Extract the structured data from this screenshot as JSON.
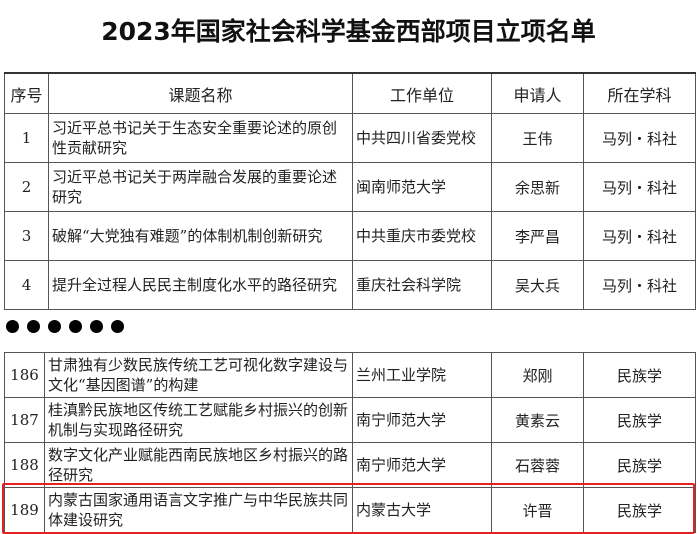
{
  "title": "2023年国家社会科学基金西部项目立项名单",
  "headers": [
    "序号",
    "课题名称",
    "工作单位",
    "申请人",
    "所在学科"
  ],
  "rows_top": [
    {
      "no": "1",
      "topic": "习近平总书记关于生态安全重要论述的原创性贡献研究",
      "unit": "中共四川省委党校",
      "applicant": "王伟",
      "subject": "马列・科社"
    },
    {
      "no": "2",
      "topic": "习近平总书记关于两岸融合发展的重要论述研究",
      "unit": "闽南师范大学",
      "applicant": "余思新",
      "subject": "马列・科社"
    },
    {
      "no": "3",
      "topic": "破解“大党独有难题”的体制机制创新研究",
      "unit": "中共重庆市委党校",
      "applicant": "李严昌",
      "subject": "马列・科社"
    },
    {
      "no": "4",
      "topic": "提升全过程人民民主制度化水平的路径研究",
      "unit": "重庆社会科学院",
      "applicant": "吴大兵",
      "subject": "马列・科社"
    }
  ],
  "rows_bottom": [
    {
      "no": "186",
      "topic": "甘肃独有少数民族传统工艺可视化数字建设与文化“基因图谱”的构建",
      "unit": "兰州工业学院",
      "applicant": "郑刚",
      "subject": "民族学"
    },
    {
      "no": "187",
      "topic": "桂滇黔民族地区传统工艺赋能乡村振兴的创新机制与实现路径研究",
      "unit": "南宁师范大学",
      "applicant": "黄素云",
      "subject": "民族学"
    },
    {
      "no": "188",
      "topic": "数字文化产业赋能西南民族地区乡村振兴的路径研究",
      "unit": "南宁师范大学",
      "applicant": "石蓉蓉",
      "subject": "民族学"
    },
    {
      "no": "189",
      "topic": "内蒙古国家通用语言文字推广与中华民族共同体建设研究",
      "unit": "内蒙古大学",
      "applicant": "许晋",
      "subject": "民族学"
    }
  ],
  "highlight_color": "#e52222"
}
